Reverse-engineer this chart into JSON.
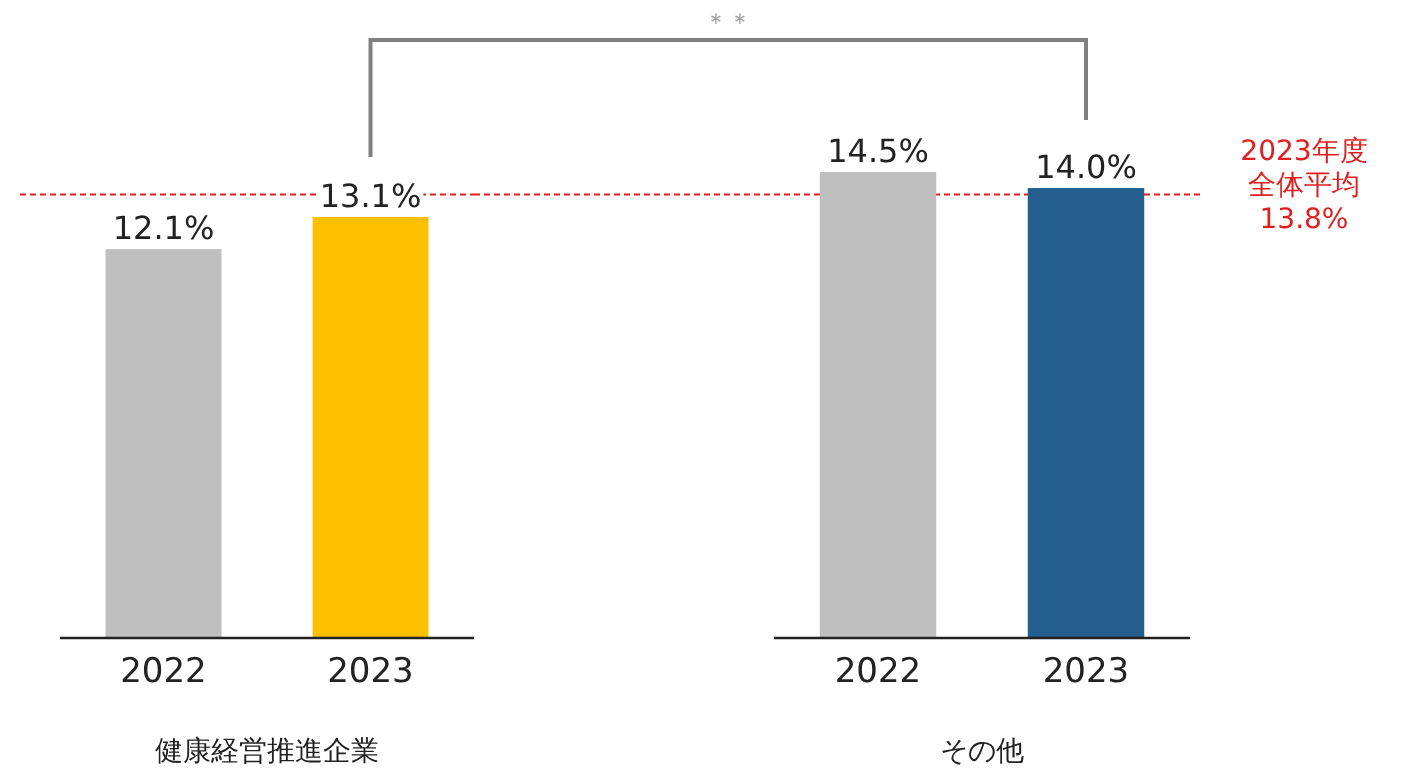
{
  "chart_data": [
    {
      "type": "bar",
      "categories": [
        "2022",
        "2023"
      ],
      "colors": [
        "#bfbfbf",
        "#ffc000"
      ],
      "values": [
        12.1,
        13.1
      ],
      "value_labels": [
        "12.1%",
        "13.1%"
      ],
      "xlabel": "健康経営推進企業",
      "tick_labels": "x",
      "annotations": [
        "＊＊"
      ],
      "ref_lines": [
        {
          "axis": "y",
          "value": 13.8,
          "color": "#e02020",
          "line_style": "dashed"
        }
      ]
    },
    {
      "type": "bar",
      "categories": [
        "2022",
        "2023"
      ],
      "colors": [
        "#bfbfbf",
        "#245e8f"
      ],
      "values": [
        14.5,
        14.0
      ],
      "value_labels": [
        "14.5%",
        "14.0%"
      ],
      "xlabel": "その他",
      "tick_labels": "x",
      "ref_lines": [
        {
          "axis": "y",
          "value": 13.8,
          "label": "2023年度全体平均13.8%",
          "color": "#e02020",
          "line_style": "dashed"
        }
      ]
    }
  ]
}
